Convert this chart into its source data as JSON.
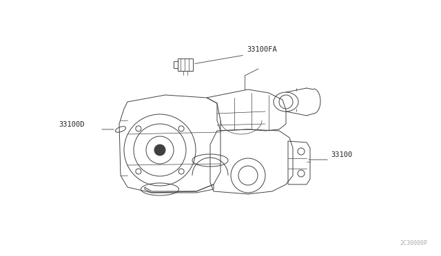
{
  "bg_color": "#ffffff",
  "border_color": "#cccccc",
  "fig_width": 6.4,
  "fig_height": 3.72,
  "dpi": 100,
  "label_33100FA": "33100FA",
  "label_33100D": "33100D",
  "label_33100": "33100",
  "watermark": "2C30000P",
  "line_color": "#404040",
  "text_color": "#222222",
  "lw_main": 0.7,
  "lw_thin": 0.5,
  "lw_leader": 0.6
}
